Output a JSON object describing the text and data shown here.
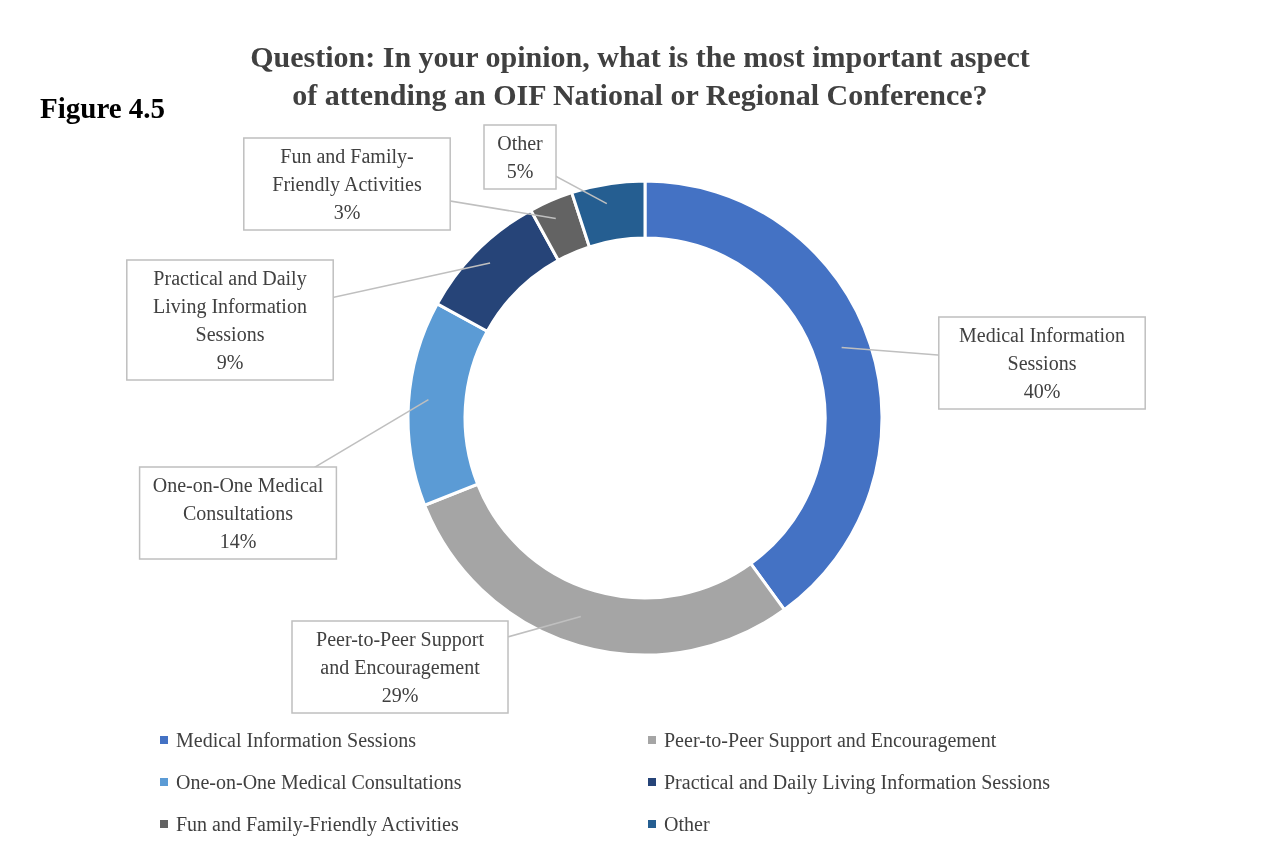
{
  "chart_data": {
    "type": "donut",
    "title": "Question: In your opinion, what is the most important aspect of attending an OIF National or Regional Conference?",
    "annotations": [
      "Figure 4.5"
    ],
    "categories": [
      "Medical Information Sessions",
      "Peer-to-Peer Support and Encouragement",
      "One-on-One Medical Consultations",
      "Practical and Daily Living Information Sessions",
      "Fun and Family-Friendly Activities",
      "Other"
    ],
    "values": [
      40,
      29,
      14,
      9,
      3,
      5
    ],
    "colors": [
      "#4472c4",
      "#a5a5a5",
      "#5b9bd5",
      "#264478",
      "#636363",
      "#255e91"
    ],
    "value_labels": [
      "40%",
      "29%",
      "14%",
      "9%",
      "3%",
      "5%"
    ],
    "legend": "bottom"
  }
}
